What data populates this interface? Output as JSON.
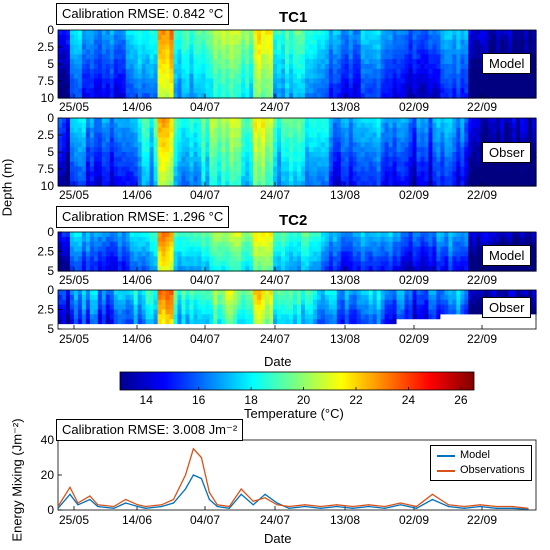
{
  "chart_data": [
    {
      "type": "heatmap",
      "title": "TC1",
      "rmse_label": "Calibration RMSE: 0.842 °C",
      "panels": [
        {
          "name": "Model",
          "yticks": [
            "0",
            "2.5",
            "5",
            "7.5",
            "10"
          ],
          "ylim": [
            0,
            10
          ]
        },
        {
          "name": "Obser",
          "yticks": [
            "0",
            "2.5",
            "5",
            "7.5",
            "10"
          ],
          "ylim": [
            0,
            10
          ]
        }
      ],
      "xticks": [
        "25/05",
        "14/06",
        "04/07",
        "24/07",
        "13/08",
        "02/09",
        "22/09"
      ],
      "ylabel": "Depth (m)",
      "colorbar": {
        "label": "Temperature (°C)",
        "ticks": [
          "14",
          "16",
          "18",
          "20",
          "22",
          "24",
          "26"
        ],
        "range": [
          13,
          26.5
        ],
        "colormap": "jet"
      }
    },
    {
      "type": "heatmap",
      "title": "TC2",
      "rmse_label": "Calibration RMSE: 1.296 °C",
      "panels": [
        {
          "name": "Model",
          "yticks": [
            "0",
            "2.5",
            "5"
          ],
          "ylim": [
            0,
            5
          ]
        },
        {
          "name": "Obser",
          "yticks": [
            "0",
            "2.5",
            "5"
          ],
          "ylim": [
            0,
            5
          ]
        }
      ],
      "xticks": [
        "25/05",
        "14/06",
        "04/07",
        "24/07",
        "13/08",
        "02/09",
        "22/09"
      ],
      "xlabel": "Date"
    },
    {
      "type": "line",
      "rmse_label": "Calibration RMSE: 3.008 Jm⁻²",
      "xticks": [
        "25/05",
        "14/06",
        "04/07",
        "24/07",
        "13/08",
        "02/09",
        "22/09"
      ],
      "yticks": [
        "0",
        "20",
        "40"
      ],
      "ylim": [
        0,
        40
      ],
      "xlabel": "Date",
      "ylabel": "Energy Mixing (Jm⁻²)",
      "series": [
        {
          "name": "Model",
          "color": "#0072bd",
          "x": [
            0,
            3,
            5,
            8,
            10,
            14,
            17,
            20,
            22,
            26,
            29,
            32,
            34,
            36,
            38,
            40,
            43,
            46,
            49,
            52,
            55,
            58,
            62,
            66,
            70,
            74,
            78,
            82,
            86,
            90,
            94,
            98,
            102,
            106,
            110,
            114,
            118
          ],
          "y": [
            1,
            9,
            3,
            6,
            2,
            1,
            4,
            2,
            1,
            2,
            4,
            12,
            20,
            18,
            6,
            2,
            1,
            9,
            3,
            9,
            4,
            1,
            2,
            1,
            2,
            1,
            2,
            1,
            3,
            1,
            6,
            2,
            1,
            2,
            1,
            1,
            0.5
          ]
        },
        {
          "name": "Observations",
          "color": "#d95319",
          "x": [
            0,
            3,
            5,
            8,
            10,
            14,
            17,
            20,
            22,
            26,
            29,
            32,
            34,
            36,
            38,
            40,
            43,
            46,
            49,
            52,
            55,
            58,
            62,
            66,
            70,
            74,
            78,
            82,
            86,
            90,
            94,
            98,
            102,
            106,
            110,
            114,
            118
          ],
          "y": [
            2,
            13,
            4,
            8,
            3,
            2,
            6,
            3,
            2,
            3,
            6,
            20,
            35,
            30,
            10,
            3,
            2,
            12,
            5,
            7,
            3,
            2,
            3,
            2,
            3,
            2,
            3,
            2,
            4,
            2,
            9,
            3,
            2,
            3,
            2,
            2,
            1
          ]
        }
      ]
    }
  ]
}
